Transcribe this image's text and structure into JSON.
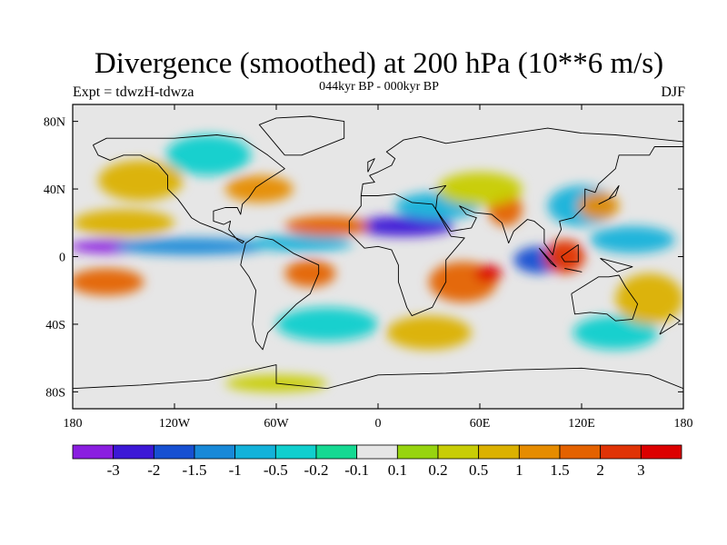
{
  "chart_data": {
    "type": "heatmap",
    "title": "Divergence (smoothed) at 200 hPa (10**6 m/s)",
    "left_string": "Expt = tdwzH-tdwza",
    "center_string": "044kyr BP - 000kyr BP",
    "right_string": "DJF",
    "x_ticks": [
      "180",
      "120W",
      "60W",
      "0",
      "60E",
      "120E",
      "180"
    ],
    "y_ticks": [
      "80N",
      "40N",
      "0",
      "40S",
      "80S"
    ],
    "xlim": [
      -180,
      180
    ],
    "ylim": [
      -90,
      90
    ],
    "colorbar": {
      "labels": [
        "-3",
        "-2",
        "-1.5",
        "-1",
        "-0.5",
        "-0.2",
        "-0.1",
        "0.1",
        "0.2",
        "0.5",
        "1",
        "1.5",
        "2",
        "3"
      ],
      "colors": [
        "#8a1ee0",
        "#3c18d6",
        "#1750d2",
        "#1889d8",
        "#13b2da",
        "#10cfce",
        "#15d992",
        "#e6e6e6",
        "#97d40f",
        "#c8cd06",
        "#dbb100",
        "#e68c00",
        "#e46200",
        "#e03306",
        "#dc0000"
      ]
    },
    "field": {
      "background": "#e6e6e6",
      "features": [
        {
          "lon": -160,
          "lat": 6,
          "rx": 22,
          "ry": 4,
          "level": 0
        },
        {
          "lon": -110,
          "lat": 6,
          "rx": 45,
          "ry": 5,
          "level": 3
        },
        {
          "lon": -45,
          "lat": 8,
          "rx": 30,
          "ry": 5,
          "level": 4
        },
        {
          "lon": 15,
          "lat": 18,
          "rx": 30,
          "ry": 6,
          "level": 1
        },
        {
          "lon": 35,
          "lat": 30,
          "rx": 25,
          "ry": 8,
          "level": 4
        },
        {
          "lon": -100,
          "lat": 60,
          "rx": 25,
          "ry": 12,
          "level": 5
        },
        {
          "lon": 120,
          "lat": 30,
          "rx": 20,
          "ry": 12,
          "level": 4
        },
        {
          "lon": 150,
          "lat": 10,
          "rx": 25,
          "ry": 8,
          "level": 4
        },
        {
          "lon": 95,
          "lat": -2,
          "rx": 15,
          "ry": 8,
          "level": 2
        },
        {
          "lon": -30,
          "lat": -40,
          "rx": 30,
          "ry": 10,
          "level": 5
        },
        {
          "lon": 140,
          "lat": -45,
          "rx": 25,
          "ry": 10,
          "level": 5
        },
        {
          "lon": -160,
          "lat": -15,
          "rx": 22,
          "ry": 8,
          "level": 12
        },
        {
          "lon": -150,
          "lat": 20,
          "rx": 30,
          "ry": 8,
          "level": 10
        },
        {
          "lon": -30,
          "lat": 18,
          "rx": 25,
          "ry": 6,
          "level": 12
        },
        {
          "lon": -40,
          "lat": -10,
          "rx": 15,
          "ry": 8,
          "level": 12
        },
        {
          "lon": 50,
          "lat": -15,
          "rx": 20,
          "ry": 12,
          "level": 12
        },
        {
          "lon": 65,
          "lat": -10,
          "rx": 8,
          "ry": 5,
          "level": 14
        },
        {
          "lon": 75,
          "lat": 28,
          "rx": 10,
          "ry": 10,
          "level": 12
        },
        {
          "lon": 110,
          "lat": 0,
          "rx": 12,
          "ry": 10,
          "level": 13
        },
        {
          "lon": 130,
          "lat": 30,
          "rx": 12,
          "ry": 8,
          "level": 11
        },
        {
          "lon": -70,
          "lat": 40,
          "rx": 20,
          "ry": 8,
          "level": 11
        },
        {
          "lon": -140,
          "lat": 45,
          "rx": 25,
          "ry": 12,
          "level": 10
        },
        {
          "lon": 60,
          "lat": 40,
          "rx": 25,
          "ry": 10,
          "level": 9
        },
        {
          "lon": -60,
          "lat": -75,
          "rx": 30,
          "ry": 5,
          "level": 9
        },
        {
          "lon": 160,
          "lat": -25,
          "rx": 20,
          "ry": 15,
          "level": 10
        },
        {
          "lon": 30,
          "lat": -45,
          "rx": 25,
          "ry": 10,
          "level": 10
        }
      ],
      "coastlines": [
        [
          [
            -168,
            66
          ],
          [
            -160,
            70
          ],
          [
            -140,
            70
          ],
          [
            -120,
            70
          ],
          [
            -95,
            72
          ],
          [
            -80,
            70
          ],
          [
            -65,
            60
          ],
          [
            -55,
            52
          ],
          [
            -66,
            45
          ],
          [
            -72,
            41
          ],
          [
            -76,
            35
          ],
          [
            -80,
            31
          ],
          [
            -81,
            25
          ],
          [
            -83,
            29
          ],
          [
            -90,
            29
          ],
          [
            -97,
            27
          ],
          [
            -97,
            21
          ],
          [
            -91,
            19
          ],
          [
            -87,
            21
          ],
          [
            -88,
            16
          ],
          [
            -83,
            10
          ],
          [
            -80,
            8
          ],
          [
            -79,
            9
          ],
          [
            -86,
            12
          ],
          [
            -92,
            15
          ],
          [
            -105,
            20
          ],
          [
            -110,
            23
          ],
          [
            -115,
            30
          ],
          [
            -118,
            34
          ],
          [
            -124,
            40
          ],
          [
            -124,
            48
          ],
          [
            -130,
            55
          ],
          [
            -140,
            60
          ],
          [
            -150,
            60
          ],
          [
            -158,
            57
          ],
          [
            -165,
            60
          ],
          [
            -168,
            66
          ]
        ],
        [
          [
            -78,
            8
          ],
          [
            -72,
            12
          ],
          [
            -62,
            10
          ],
          [
            -50,
            2
          ],
          [
            -35,
            -5
          ],
          [
            -35,
            -10
          ],
          [
            -40,
            -22
          ],
          [
            -48,
            -28
          ],
          [
            -58,
            -38
          ],
          [
            -65,
            -45
          ],
          [
            -68,
            -55
          ],
          [
            -72,
            -50
          ],
          [
            -74,
            -40
          ],
          [
            -72,
            -20
          ],
          [
            -76,
            -12
          ],
          [
            -81,
            -5
          ],
          [
            -80,
            0
          ],
          [
            -78,
            8
          ]
        ],
        [
          [
            -10,
            36
          ],
          [
            0,
            36
          ],
          [
            10,
            37
          ],
          [
            20,
            32
          ],
          [
            32,
            31
          ],
          [
            34,
            28
          ],
          [
            43,
            12
          ],
          [
            51,
            11
          ],
          [
            40,
            -2
          ],
          [
            40,
            -15
          ],
          [
            35,
            -24
          ],
          [
            32,
            -30
          ],
          [
            20,
            -35
          ],
          [
            17,
            -30
          ],
          [
            12,
            -15
          ],
          [
            12,
            -5
          ],
          [
            8,
            4
          ],
          [
            0,
            6
          ],
          [
            -8,
            5
          ],
          [
            -17,
            14
          ],
          [
            -17,
            21
          ],
          [
            -10,
            30
          ],
          [
            -10,
            36
          ]
        ],
        [
          [
            -10,
            36
          ],
          [
            -9,
            43
          ],
          [
            -2,
            44
          ],
          [
            -5,
            48
          ],
          [
            0,
            50
          ],
          [
            8,
            54
          ],
          [
            10,
            58
          ],
          [
            5,
            62
          ],
          [
            15,
            69
          ],
          [
            25,
            71
          ],
          [
            40,
            67
          ],
          [
            60,
            70
          ],
          [
            80,
            73
          ],
          [
            100,
            76
          ],
          [
            120,
            73
          ],
          [
            140,
            72
          ],
          [
            160,
            70
          ],
          [
            180,
            68
          ]
        ],
        [
          [
            30,
            40
          ],
          [
            40,
            42
          ],
          [
            35,
            36
          ],
          [
            34,
            28
          ],
          [
            43,
            15
          ],
          [
            55,
            17
          ],
          [
            58,
            23
          ],
          [
            52,
            25
          ],
          [
            48,
            30
          ],
          [
            57,
            26
          ],
          [
            67,
            25
          ],
          [
            73,
            20
          ],
          [
            77,
            8
          ],
          [
            80,
            15
          ],
          [
            88,
            22
          ],
          [
            92,
            21
          ],
          [
            98,
            16
          ],
          [
            98,
            8
          ],
          [
            103,
            1
          ],
          [
            105,
            10
          ],
          [
            108,
            16
          ],
          [
            107,
            21
          ],
          [
            115,
            23
          ],
          [
            122,
            30
          ],
          [
            122,
            40
          ],
          [
            128,
            38
          ],
          [
            130,
            43
          ],
          [
            140,
            52
          ],
          [
            142,
            60
          ],
          [
            160,
            60
          ],
          [
            163,
            65
          ],
          [
            180,
            65
          ]
        ],
        [
          [
            114,
            -22
          ],
          [
            116,
            -34
          ],
          [
            125,
            -33
          ],
          [
            135,
            -34
          ],
          [
            140,
            -38
          ],
          [
            150,
            -37
          ],
          [
            153,
            -28
          ],
          [
            146,
            -18
          ],
          [
            142,
            -11
          ],
          [
            136,
            -12
          ],
          [
            130,
            -12
          ],
          [
            122,
            -17
          ],
          [
            114,
            -22
          ]
        ],
        [
          [
            -180,
            -78
          ],
          [
            -140,
            -76
          ],
          [
            -100,
            -73
          ],
          [
            -60,
            -64
          ],
          [
            -60,
            -75
          ],
          [
            -30,
            -78
          ],
          [
            0,
            -70
          ],
          [
            40,
            -69
          ],
          [
            80,
            -67
          ],
          [
            120,
            -66
          ],
          [
            160,
            -70
          ],
          [
            180,
            -78
          ]
        ],
        [
          [
            -55,
            60
          ],
          [
            -45,
            60
          ],
          [
            -20,
            70
          ],
          [
            -20,
            80
          ],
          [
            -40,
            83
          ],
          [
            -60,
            82
          ],
          [
            -70,
            78
          ],
          [
            -55,
            60
          ]
        ],
        [
          [
            95,
            5
          ],
          [
            105,
            -6
          ],
          [
            102,
            -4
          ],
          [
            95,
            5
          ]
        ],
        [
          [
            110,
            -7
          ],
          [
            120,
            -9
          ],
          [
            115,
            -8
          ],
          [
            110,
            -7
          ]
        ],
        [
          [
            108,
            0
          ],
          [
            118,
            7
          ],
          [
            118,
            -3
          ],
          [
            110,
            -3
          ],
          [
            108,
            0
          ]
        ],
        [
          [
            131,
            -1
          ],
          [
            150,
            -6
          ],
          [
            141,
            -9
          ],
          [
            131,
            -1
          ]
        ],
        [
          [
            130,
            31
          ],
          [
            140,
            36
          ],
          [
            142,
            42
          ],
          [
            136,
            34
          ],
          [
            130,
            31
          ]
        ],
        [
          [
            166,
            -46
          ],
          [
            174,
            -41
          ],
          [
            178,
            -38
          ],
          [
            172,
            -34
          ],
          [
            166,
            -46
          ]
        ],
        [
          [
            -6,
            50
          ],
          [
            -2,
            58
          ],
          [
            -6,
            56
          ],
          [
            -6,
            50
          ]
        ]
      ]
    }
  }
}
